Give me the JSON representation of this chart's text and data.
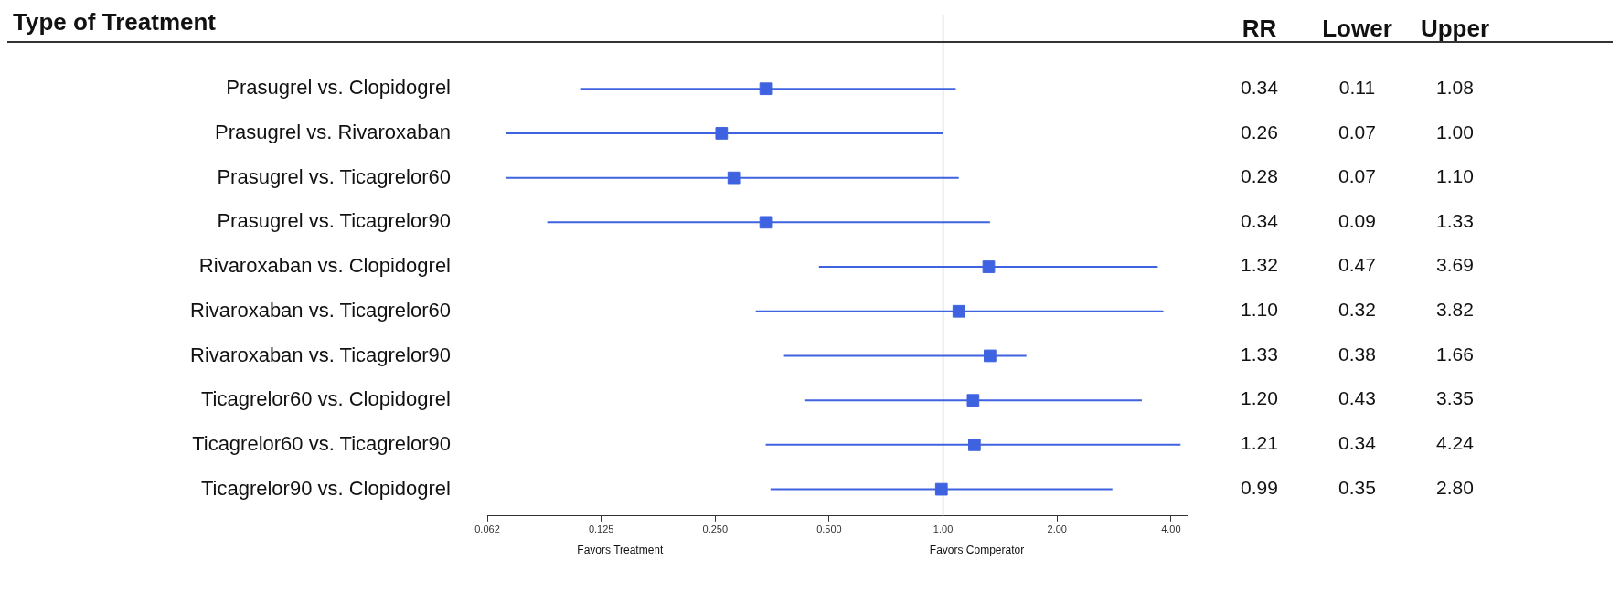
{
  "chart_data": [
    {
      "type": "scatter",
      "orientation": "horizontal",
      "categories": [
        "Prasugrel vs. Clopidogrel",
        "Prasugrel vs. Rivaroxaban",
        "Prasugrel vs. Ticagrelor60",
        "Prasugrel vs. Ticagrelor90",
        "Rivaroxaban vs. Clopidogrel",
        "Rivaroxaban vs. Ticagrelor60",
        "Rivaroxaban vs. Ticagrelor90",
        "Ticagrelor60 vs. Clopidogrel",
        "Ticagrelor60 vs. Ticagrelor90",
        "Ticagrelor90 vs. Clopidogrel"
      ],
      "series": [
        {
          "color": "#3f63e0",
          "values": [
            0.34,
            0.26,
            0.28,
            0.34,
            1.32,
            1.1,
            1.33,
            1.2,
            1.21,
            0.99
          ],
          "errors": [
            [
              0.11,
              1.08
            ],
            [
              0.07,
              1.0
            ],
            [
              0.07,
              1.1
            ],
            [
              0.09,
              1.33
            ],
            [
              0.47,
              3.69
            ],
            [
              0.32,
              3.82
            ],
            [
              0.38,
              1.66
            ],
            [
              0.43,
              3.35
            ],
            [
              0.34,
              4.24
            ],
            [
              0.35,
              2.8
            ]
          ]
        }
      ],
      "log": "x",
      "xlim": [
        0.0625,
        4.4
      ],
      "xticks": [
        {
          "value": 0.0625,
          "label": "0.062"
        },
        {
          "value": 0.125,
          "label": "0.125"
        },
        {
          "value": 0.25,
          "label": "0.250"
        },
        {
          "value": 0.5,
          "label": "0.500"
        },
        {
          "value": 1,
          "label": "1.00"
        },
        {
          "value": 2,
          "label": "2.00"
        },
        {
          "value": 4,
          "label": "4.00"
        }
      ],
      "ref_lines": [
        {
          "axis": "x",
          "value": 1,
          "color": "#cccccc"
        }
      ],
      "marker": "square",
      "grid": false,
      "legend": false,
      "annotations": [
        "Favors Treatment",
        "Favors Comperator",
        "Type of Treatment"
      ]
    },
    {
      "type": "heatmap",
      "categories": [
        "RR",
        "Lower",
        "Upper"
      ],
      "data_labels": true,
      "y_categories": [
        null,
        null,
        null,
        null,
        null,
        null,
        null,
        null,
        null,
        null
      ],
      "cell_labels": [
        [
          "0.34",
          "0.11",
          "1.08"
        ],
        [
          "0.26",
          "0.07",
          "1.00"
        ],
        [
          "0.28",
          "0.07",
          "1.10"
        ],
        [
          "0.34",
          "0.09",
          "1.33"
        ],
        [
          "1.32",
          "0.47",
          "3.69"
        ],
        [
          "1.10",
          "0.32",
          "3.82"
        ],
        [
          "1.33",
          "0.38",
          "1.66"
        ],
        [
          "1.20",
          "0.43",
          "3.35"
        ],
        [
          "1.21",
          "0.34",
          "4.24"
        ],
        [
          "0.99",
          "0.35",
          "2.80"
        ]
      ],
      "cells": [
        [
          0.34,
          0.11,
          1.08
        ],
        [
          0.26,
          0.07,
          1.0
        ],
        [
          0.28,
          0.07,
          1.1
        ],
        [
          0.34,
          0.09,
          1.33
        ],
        [
          1.32,
          0.47,
          3.69
        ],
        [
          1.1,
          0.32,
          3.82
        ],
        [
          1.33,
          0.38,
          1.66
        ],
        [
          1.2,
          0.43,
          3.35
        ],
        [
          1.21,
          0.34,
          4.24
        ],
        [
          0.99,
          0.35,
          2.8
        ]
      ]
    }
  ]
}
